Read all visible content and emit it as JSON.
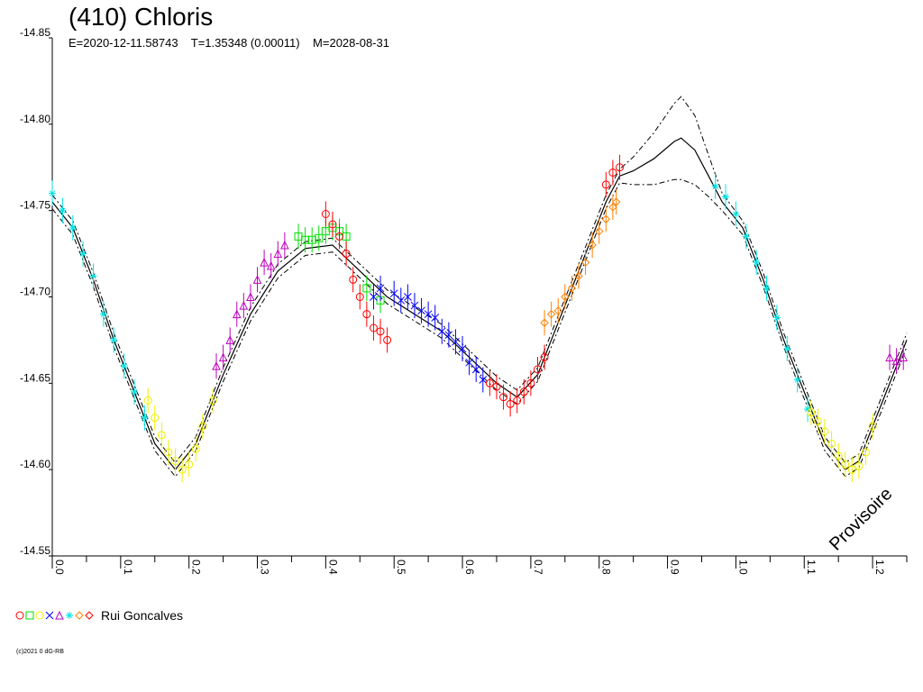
{
  "chart_data": {
    "type": "scatter",
    "title": "(410) Chloris",
    "subtitle": "E=2020-12-11.58743    T=1.35348 (0.00011)    M=2028-08-31",
    "xlabel": "",
    "ylabel": "",
    "xlim": [
      0.0,
      1.25
    ],
    "ylim": [
      -14.85,
      -14.55
    ],
    "y_ticks": [
      "-14.85",
      "-14.80",
      "-14.75",
      "-14.70",
      "-14.65",
      "-14.60",
      "-14.55"
    ],
    "x_ticks": [
      "0.0",
      "0.1",
      "0.2",
      "0.3",
      "0.4",
      "0.5",
      "0.6",
      "0.7",
      "0.8",
      "0.9",
      "1.0",
      "1.1",
      "1.2"
    ],
    "grid": false,
    "watermark": "Provisoire",
    "fit_curve": {
      "x": [
        0.0,
        0.03,
        0.06,
        0.09,
        0.12,
        0.15,
        0.18,
        0.21,
        0.25,
        0.29,
        0.33,
        0.37,
        0.41,
        0.45,
        0.49,
        0.53,
        0.57,
        0.61,
        0.65,
        0.68,
        0.71,
        0.74,
        0.78,
        0.81,
        0.83,
        0.85,
        0.88,
        0.91,
        0.92,
        0.94,
        0.96,
        0.98,
        1.01,
        1.04,
        1.07,
        1.1,
        1.13,
        1.16,
        1.18,
        1.21,
        1.25
      ],
      "y": [
        -14.755,
        -14.74,
        -14.71,
        -14.675,
        -14.645,
        -14.615,
        -14.6,
        -14.615,
        -14.655,
        -14.69,
        -14.715,
        -14.728,
        -14.73,
        -14.715,
        -14.7,
        -14.69,
        -14.68,
        -14.665,
        -14.65,
        -14.642,
        -14.655,
        -14.685,
        -14.725,
        -14.755,
        -14.77,
        -14.773,
        -14.78,
        -14.79,
        -14.792,
        -14.785,
        -14.77,
        -14.755,
        -14.74,
        -14.71,
        -14.675,
        -14.645,
        -14.615,
        -14.6,
        -14.605,
        -14.635,
        -14.675
      ],
      "uncertainty": [
        0.004,
        0.004,
        0.004,
        0.004,
        0.004,
        0.004,
        0.004,
        0.004,
        0.004,
        0.004,
        0.004,
        0.004,
        0.004,
        0.004,
        0.004,
        0.004,
        0.004,
        0.004,
        0.004,
        0.004,
        0.004,
        0.004,
        0.004,
        0.004,
        0.004,
        0.008,
        0.015,
        0.022,
        0.024,
        0.02,
        0.012,
        0.005,
        0.004,
        0.004,
        0.004,
        0.004,
        0.004,
        0.004,
        0.004,
        0.004,
        0.004
      ]
    },
    "series": [
      {
        "color": "#00e5e5",
        "marker": "star",
        "x": [
          0.0,
          0.015,
          0.03,
          0.045,
          0.06,
          0.075,
          0.09,
          0.105,
          0.12,
          0.135,
          0.97,
          0.985,
          1.0,
          1.015,
          1.03,
          1.045,
          1.06,
          1.075,
          1.09,
          1.105
        ],
        "y": [
          -14.76,
          -14.75,
          -14.74,
          -14.725,
          -14.712,
          -14.69,
          -14.675,
          -14.66,
          -14.645,
          -14.63,
          -14.764,
          -14.758,
          -14.748,
          -14.735,
          -14.72,
          -14.705,
          -14.688,
          -14.67,
          -14.652,
          -14.635
        ]
      },
      {
        "color": "#f0f000",
        "marker": "circle",
        "x": [
          0.14,
          0.15,
          0.16,
          0.17,
          0.18,
          0.19,
          0.2,
          0.21,
          0.22,
          0.235,
          1.11,
          1.12,
          1.13,
          1.14,
          1.15,
          1.16,
          1.17,
          1.18,
          1.19,
          1.2
        ],
        "y": [
          -14.64,
          -14.63,
          -14.62,
          -14.61,
          -14.605,
          -14.6,
          -14.603,
          -14.612,
          -14.625,
          -14.64,
          -14.633,
          -14.628,
          -14.622,
          -14.615,
          -14.608,
          -14.603,
          -14.6,
          -14.602,
          -14.61,
          -14.625
        ]
      },
      {
        "color": "#c000c0",
        "marker": "triangle",
        "x": [
          0.24,
          0.25,
          0.26,
          0.27,
          0.28,
          0.29,
          0.3,
          0.31,
          0.32,
          0.33,
          0.34,
          1.225,
          1.235,
          1.245
        ],
        "y": [
          -14.66,
          -14.665,
          -14.675,
          -14.69,
          -14.695,
          -14.7,
          -14.71,
          -14.72,
          -14.718,
          -14.725,
          -14.73,
          -14.665,
          -14.663,
          -14.665
        ]
      },
      {
        "color": "#00e000",
        "marker": "square",
        "x": [
          0.36,
          0.37,
          0.38,
          0.39,
          0.4,
          0.41,
          0.42,
          0.43,
          0.46,
          0.48
        ],
        "y": [
          -14.735,
          -14.733,
          -14.733,
          -14.734,
          -14.738,
          -14.74,
          -14.738,
          -14.735,
          -14.705,
          -14.698
        ]
      },
      {
        "color": "#0000ff",
        "marker": "cross",
        "x": [
          0.47,
          0.48,
          0.5,
          0.51,
          0.52,
          0.53,
          0.54,
          0.55,
          0.56,
          0.57,
          0.58,
          0.59,
          0.6,
          0.61,
          0.62,
          0.63
        ],
        "y": [
          -14.7,
          -14.705,
          -14.702,
          -14.698,
          -14.7,
          -14.695,
          -14.692,
          -14.69,
          -14.688,
          -14.68,
          -14.678,
          -14.674,
          -14.67,
          -14.662,
          -14.658,
          -14.652
        ]
      },
      {
        "color": "#ff0000",
        "marker": "circle",
        "x": [
          0.4,
          0.41,
          0.42,
          0.43,
          0.44,
          0.45,
          0.46,
          0.47,
          0.48,
          0.49,
          0.64,
          0.65,
          0.66,
          0.67,
          0.68,
          0.69,
          0.7,
          0.71,
          0.72,
          0.81,
          0.82,
          0.83
        ],
        "y": [
          -14.748,
          -14.742,
          -14.735,
          -14.725,
          -14.71,
          -14.7,
          -14.69,
          -14.682,
          -14.68,
          -14.675,
          -14.65,
          -14.648,
          -14.642,
          -14.638,
          -14.64,
          -14.645,
          -14.65,
          -14.658,
          -14.665,
          -14.765,
          -14.772,
          -14.775
        ]
      },
      {
        "color": "#ff8000",
        "marker": "diamond",
        "x": [
          0.72,
          0.73,
          0.74,
          0.75,
          0.76,
          0.77,
          0.78,
          0.79,
          0.8,
          0.81,
          0.82,
          0.825
        ],
        "y": [
          -14.685,
          -14.69,
          -14.692,
          -14.7,
          -14.705,
          -14.712,
          -14.72,
          -14.73,
          -14.738,
          -14.745,
          -14.752,
          -14.755
        ]
      }
    ],
    "legend": {
      "label": "Rui Goncalves",
      "placement": "bottom-left",
      "symbol_colors": [
        "#ff0000",
        "#00e000",
        "#f0f000",
        "#0000ff",
        "#c000c0",
        "#00e5e5",
        "#ff8000",
        "#ff0000"
      ]
    }
  },
  "copyright": "(c)2021 0 dG-RB"
}
